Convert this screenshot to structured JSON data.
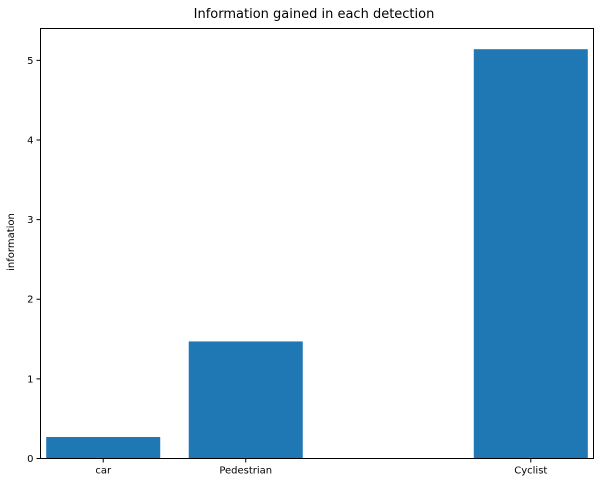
{
  "chart_data": {
    "type": "bar",
    "title": "Information gained in each detection",
    "xlabel": "",
    "ylabel": "information",
    "categories": [
      "car",
      "",
      "Pedestrian",
      "",
      "Cyclist"
    ],
    "category_positions": [
      0,
      1,
      2,
      3,
      4
    ],
    "bars": [
      {
        "category": "car",
        "x": 0,
        "value": 0.27
      },
      {
        "category": "Pedestrian",
        "x": 1,
        "value": 1.47
      },
      {
        "category": "Cyclist",
        "x": 3,
        "value": 5.14
      }
    ],
    "ylim": [
      0,
      5.4
    ],
    "yticks": [
      0,
      1,
      2,
      3,
      4,
      5
    ],
    "bar_color": "#1f77b4",
    "grid": false,
    "legend": "none"
  }
}
